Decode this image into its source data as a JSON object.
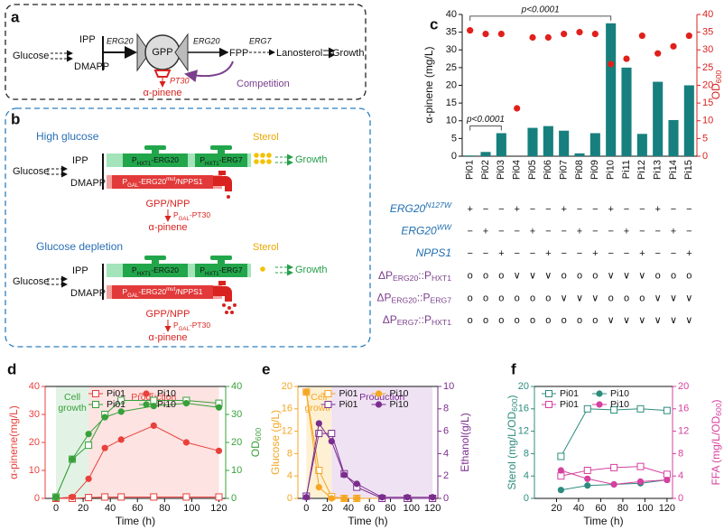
{
  "panel_a": {
    "label": "a",
    "glucose": "Glucose",
    "ipp": "IPP",
    "dmapp": "DMAPP",
    "enzyme1": "ERG20",
    "gpp": "GPP",
    "enzyme2": "ERG20",
    "fpp": "FPP",
    "enzyme3": "ERG7",
    "lanosterol": "Lanosterol",
    "growth": "Growth",
    "pt30": "PT30",
    "product": "α-pinene",
    "competition": "Competition"
  },
  "panel_b": {
    "label": "b",
    "states": [
      {
        "condition": "High glucose",
        "sterol": "Sterol",
        "glucose": "Glucose",
        "ipp": "IPP",
        "dmapp": "DMAPP",
        "cassette_erg20": [
          "P",
          "HXT1",
          "-ERG20"
        ],
        "cassette_erg7": [
          "P",
          "HXT1",
          "-ERG7"
        ],
        "growth": "Growth",
        "cassette_gal": [
          "P",
          "GAL",
          "-ERG20",
          "mut",
          "/NPPS1"
        ],
        "intermediate": "GPP/NPP",
        "cassette_pt30": [
          "P",
          "GAL",
          "-PT30"
        ],
        "product": "α-pinene"
      },
      {
        "condition": "Glucose depletion",
        "sterol": "Sterol",
        "glucose": "Glucose",
        "ipp": "IPP",
        "dmapp": "DMAPP",
        "cassette_erg20": [
          "P",
          "HXT1",
          "-ERG20"
        ],
        "cassette_erg7": [
          "P",
          "HXT1",
          "-ERG7"
        ],
        "growth": "Growth",
        "cassette_gal": [
          "P",
          "GAL",
          "-ERG20",
          "mut",
          "/NPPS1"
        ],
        "intermediate": "GPP/NPP",
        "cassette_pt30": [
          "P",
          "GAL",
          "-PT30"
        ],
        "product": "α-pinene"
      }
    ]
  },
  "chart_data": [
    {
      "type": "bar",
      "panel": "c",
      "ylabel": "α-pinene (mg/L)",
      "y2label": [
        "OD",
        "600"
      ],
      "categories": [
        "Pi01",
        "Pi02",
        "Pi03",
        "Pi04",
        "Pi05",
        "Pi06",
        "Pi07",
        "Pi08",
        "Pi09",
        "Pi10",
        "Pi11",
        "Pi12",
        "Pi13",
        "Pi14",
        "Pi15"
      ],
      "series": [
        {
          "values": [
            0.2,
            1.2,
            6.5,
            0,
            8,
            8.5,
            7.2,
            0.8,
            6.5,
            37.5,
            25,
            6.3,
            21,
            10.2,
            20
          ],
          "color": "#17807e",
          "axis": "y"
        },
        {
          "values": [
            35.5,
            34.5,
            34.5,
            13.5,
            33.5,
            33.5,
            34.5,
            35,
            34.5,
            26,
            27.5,
            34,
            29,
            31,
            34
          ],
          "color": "#e0201c",
          "axis": "y2",
          "marker": "dot"
        }
      ],
      "ylim": [
        0,
        40
      ],
      "yticks": [
        0,
        5,
        10,
        15,
        20,
        25,
        30,
        35,
        40
      ],
      "y2lim": [
        0,
        40
      ],
      "y2ticks": [
        0,
        5,
        10,
        15,
        20,
        25,
        30,
        35,
        40
      ],
      "annotations": [
        {
          "text": "p<0.0001",
          "between": [
            0,
            9
          ]
        },
        {
          "text": "p<0.0001",
          "between": [
            0,
            2
          ]
        }
      ],
      "genotype_table": {
        "rows": [
          {
            "label": [
              "ERG20",
              "N127W"
            ],
            "color": "#1f6fb0",
            "marks": [
              "+",
              "−",
              "−",
              "+",
              "−",
              "−",
              "+",
              "−",
              "−",
              "+",
              "−",
              "−",
              "+",
              "−",
              "−"
            ]
          },
          {
            "label": [
              "ERG20",
              "WW"
            ],
            "color": "#1f6fb0",
            "marks": [
              "−",
              "+",
              "−",
              "−",
              "+",
              "−",
              "−",
              "+",
              "−",
              "−",
              "+",
              "−",
              "−",
              "+",
              "−"
            ]
          },
          {
            "label": [
              "NPPS1"
            ],
            "color": "#1f6fb0",
            "marks": [
              "−",
              "−",
              "+",
              "−",
              "−",
              "+",
              "−",
              "−",
              "+",
              "−",
              "−",
              "+",
              "−",
              "−",
              "+"
            ]
          },
          {
            "label": [
              "ΔP",
              "ERG20",
              "::P",
              "HXT1"
            ],
            "color": "#7b3f8c",
            "marks": [
              "o",
              "o",
              "o",
              "∨",
              "∨",
              "∨",
              "o",
              "o",
              "o",
              "∨",
              "∨",
              "∨",
              "o",
              "o",
              "o"
            ]
          },
          {
            "label": [
              "ΔP",
              "ERG20",
              "::P",
              "ERG7"
            ],
            "color": "#7b3f8c",
            "marks": [
              "o",
              "o",
              "o",
              "o",
              "o",
              "o",
              "∨",
              "∨",
              "∨",
              "o",
              "o",
              "o",
              "∨",
              "∨",
              "∨"
            ]
          },
          {
            "label": [
              "ΔP",
              "ERG7",
              "::P",
              "HXT1"
            ],
            "color": "#7b3f8c",
            "marks": [
              "o",
              "o",
              "o",
              "o",
              "o",
              "o",
              "o",
              "o",
              "o",
              "∨",
              "∨",
              "∨",
              "∨",
              "∨",
              "∨"
            ]
          }
        ]
      }
    },
    {
      "type": "line",
      "panel": "d",
      "xlabel": "Time (h)",
      "ylabel": "α-pinene(mg/L)",
      "y2label": [
        "OD",
        "600"
      ],
      "x": [
        0,
        12,
        24,
        36,
        48,
        72,
        96,
        120
      ],
      "xlim": [
        -8,
        125
      ],
      "xticks": [
        0,
        20,
        40,
        60,
        80,
        100,
        120
      ],
      "ylim": [
        0,
        40
      ],
      "yticks": [
        0,
        10,
        20,
        30,
        40
      ],
      "y2lim": [
        0,
        40
      ],
      "y2ticks": [
        0,
        10,
        20,
        30,
        40
      ],
      "legend": "top-center",
      "regions": [
        {
          "label": [
            "Cell",
            "growth"
          ],
          "range": [
            0,
            24
          ],
          "color": "#e2f3e5",
          "label_color": "#37a03a"
        },
        {
          "label": [
            "Production"
          ],
          "range": [
            24,
            120
          ],
          "color": "#fde3e1",
          "label_color": "#e8413c"
        }
      ],
      "series": [
        {
          "name": "Pi01",
          "color": "#e8413c",
          "marker": "open-square",
          "axis": "y",
          "values": [
            0,
            0,
            0.3,
            0.5,
            0.5,
            0.5,
            0.5,
            0.5
          ]
        },
        {
          "name": "Pi10",
          "color": "#e8413c",
          "marker": "filled-circle",
          "axis": "y",
          "values": [
            0,
            0.5,
            7,
            18,
            21,
            26,
            20,
            17
          ]
        },
        {
          "name": "Pi01",
          "color": "#37a03a",
          "marker": "open-square",
          "axis": "y2",
          "values": [
            0.5,
            14,
            19,
            30,
            35,
            35,
            35,
            34
          ]
        },
        {
          "name": "Pi10",
          "color": "#37a03a",
          "marker": "filled-circle",
          "axis": "y2",
          "values": [
            0.5,
            14,
            23,
            29,
            31,
            33,
            34,
            32.5
          ]
        }
      ]
    },
    {
      "type": "line",
      "panel": "e",
      "xlabel": "Time (h)",
      "ylabel": "Glucose (g/L)",
      "y2label": "Ethanol(g/L)",
      "x": [
        0,
        12,
        24,
        36,
        48,
        72,
        96,
        120
      ],
      "xlim": [
        -8,
        125
      ],
      "xticks": [
        0,
        20,
        40,
        60,
        80,
        100,
        120
      ],
      "ylim": [
        0,
        20
      ],
      "yticks": [
        0,
        4,
        8,
        12,
        16,
        20
      ],
      "y2lim": [
        0,
        10
      ],
      "y2ticks": [
        0,
        2,
        4,
        6,
        8,
        10
      ],
      "legend": "top-center",
      "regions": [
        {
          "label": [
            "Cell",
            "growth"
          ],
          "range": [
            0,
            24
          ],
          "color": "#fdf0d3",
          "label_color": "#f5a623"
        },
        {
          "label": [
            "Production"
          ],
          "range": [
            24,
            120
          ],
          "color": "#efe2f3",
          "label_color": "#7b2d8e"
        }
      ],
      "series": [
        {
          "name": "Pi01",
          "color": "#f5a623",
          "marker": "open-square",
          "axis": "y",
          "values": [
            19,
            5,
            0.3,
            0,
            0,
            0,
            0,
            0
          ]
        },
        {
          "name": "Pi10",
          "color": "#f5a623",
          "marker": "filled-circle",
          "axis": "y",
          "values": [
            19,
            2,
            0,
            0,
            0,
            0,
            0,
            0
          ]
        },
        {
          "name": "Pi01",
          "color": "#7b2d8e",
          "marker": "open-square",
          "axis": "y2",
          "values": [
            0.2,
            5.8,
            5.8,
            2.2,
            1,
            0,
            0,
            0
          ]
        },
        {
          "name": "Pi10",
          "color": "#7b2d8e",
          "marker": "filled-circle",
          "axis": "y2",
          "values": [
            0.1,
            6.7,
            5.1,
            2.1,
            1.3,
            0.1,
            0.1,
            0.1
          ]
        }
      ]
    },
    {
      "type": "line",
      "panel": "f",
      "xlabel": "Time (h)",
      "ylabel": [
        "Sterol (mg/L/OD",
        "600",
        ")"
      ],
      "y2label": [
        "FFA (mg/L/OD",
        "600",
        ")"
      ],
      "x": [
        24,
        48,
        72,
        96,
        120
      ],
      "xlim": [
        0,
        125
      ],
      "xticks": [
        20,
        40,
        60,
        80,
        100,
        120
      ],
      "ylim": [
        0,
        20
      ],
      "yticks": [
        0,
        4,
        8,
        12,
        16,
        20
      ],
      "y2lim": [
        0,
        20
      ],
      "y2ticks": [
        0,
        4,
        8,
        12,
        16,
        20
      ],
      "legend": "top-left",
      "series": [
        {
          "name": "Pi01",
          "color": "#2c8c7e",
          "marker": "open-square",
          "axis": "y",
          "values": [
            7.5,
            16,
            15.8,
            16,
            15.7
          ]
        },
        {
          "name": "Pi10",
          "color": "#2c8c7e",
          "marker": "filled-circle",
          "axis": "y",
          "values": [
            1.5,
            2.3,
            2.5,
            2.7,
            3.3
          ]
        },
        {
          "name": "Pi01",
          "color": "#d6409f",
          "marker": "open-square",
          "axis": "y2",
          "values": [
            4,
            5,
            5.5,
            5.7,
            4.3
          ]
        },
        {
          "name": "Pi10",
          "color": "#d6409f",
          "marker": "filled-circle",
          "axis": "y2",
          "values": [
            5,
            3.5,
            2.5,
            3,
            3.3
          ]
        }
      ]
    }
  ]
}
